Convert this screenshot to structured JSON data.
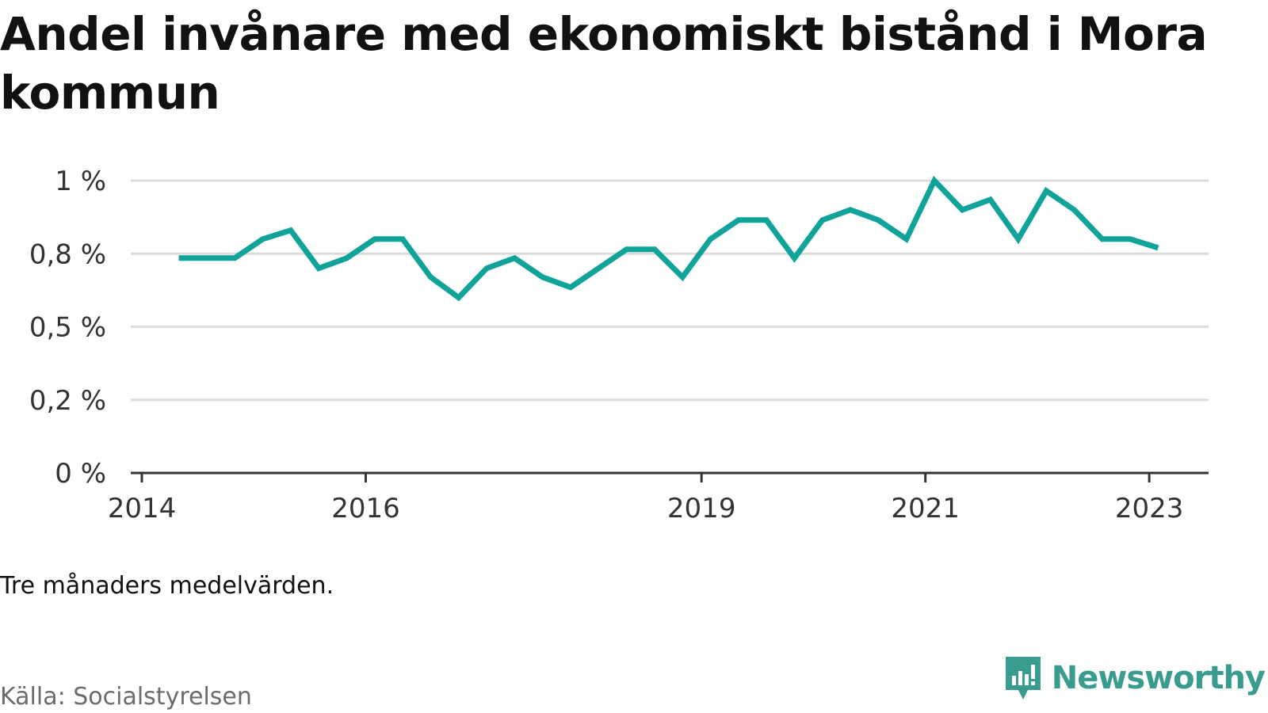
{
  "title": "Andel invånare med ekonomiskt bistånd i Mora kommun",
  "note": "Tre månaders medelvärden.",
  "source": "Källa: Socialstyrelsen",
  "brand": {
    "name": "Newsworthy",
    "color": "#3a9b8f",
    "icon": "newsworthy-logo-icon"
  },
  "chart_data": {
    "type": "line",
    "line_color": "#0fa39a",
    "grid": true,
    "y_ticks": [
      0,
      0.25,
      0.5,
      0.75,
      1.0
    ],
    "y_tick_labels": [
      "0 %",
      "0,2 %",
      "0,5 %",
      "0,8 %",
      "1 %"
    ],
    "ylim": [
      0,
      1.0
    ],
    "x_ticks": [
      2014,
      2016,
      2019,
      2021,
      2023
    ],
    "x_tick_labels": [
      "2014",
      "2016",
      "2019",
      "2021",
      "2023"
    ],
    "xlim": [
      2014,
      2023.53
    ],
    "series": [
      {
        "x": [
          2014.33,
          2014.58,
          2014.83,
          2015.08,
          2015.33,
          2015.58,
          2015.83,
          2016.08,
          2016.33,
          2016.58,
          2016.83,
          2017.08,
          2017.33,
          2017.58,
          2017.83,
          2018.08,
          2018.33,
          2018.58,
          2018.83,
          2019.08,
          2019.33,
          2019.58,
          2019.83,
          2020.08,
          2020.33,
          2020.58,
          2020.83,
          2021.08,
          2021.33,
          2021.58,
          2021.83,
          2022.08,
          2022.33,
          2022.58,
          2022.83,
          2023.08
        ],
        "values": [
          0.735,
          0.735,
          0.735,
          0.8,
          0.83,
          0.7,
          0.735,
          0.8,
          0.8,
          0.67,
          0.6,
          0.7,
          0.735,
          0.67,
          0.635,
          0.7,
          0.765,
          0.765,
          0.67,
          0.8,
          0.865,
          0.865,
          0.735,
          0.865,
          0.9,
          0.865,
          0.8,
          1.0,
          0.9,
          0.935,
          0.8,
          0.965,
          0.9,
          0.8,
          0.8,
          0.77
        ]
      }
    ]
  }
}
